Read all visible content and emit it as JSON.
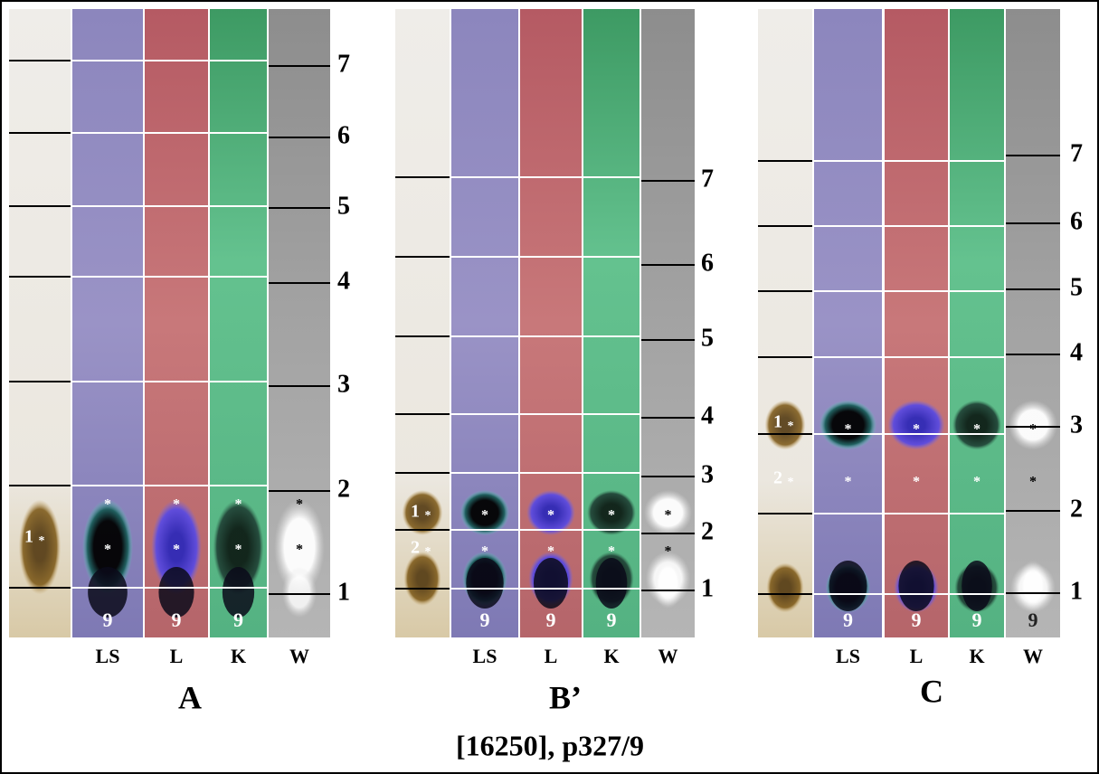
{
  "figure": {
    "caption": "[16250], p327/9",
    "marker": "*",
    "panels": [
      {
        "label": "A",
        "lanes": [
          "LS",
          "L",
          "K",
          "W"
        ],
        "zones": [
          "1",
          "2",
          "3",
          "4",
          "5",
          "6",
          "7"
        ],
        "lane_numbers": [
          "9",
          "9",
          "9"
        ],
        "spots": [
          "1"
        ]
      },
      {
        "label": "B’",
        "lanes": [
          "LS",
          "L",
          "K",
          "W"
        ],
        "zones": [
          "1",
          "2",
          "3",
          "4",
          "5",
          "6",
          "7"
        ],
        "lane_numbers": [
          "9",
          "9",
          "9"
        ],
        "spots": [
          "1",
          "2"
        ]
      },
      {
        "label": "C",
        "lanes": [
          "LS",
          "L",
          "K",
          "W"
        ],
        "zones": [
          "1",
          "2",
          "3",
          "4",
          "5",
          "6",
          "7"
        ],
        "lane_numbers": [
          "9",
          "9",
          "9",
          "9"
        ],
        "spots": [
          "1",
          "2"
        ]
      }
    ]
  }
}
